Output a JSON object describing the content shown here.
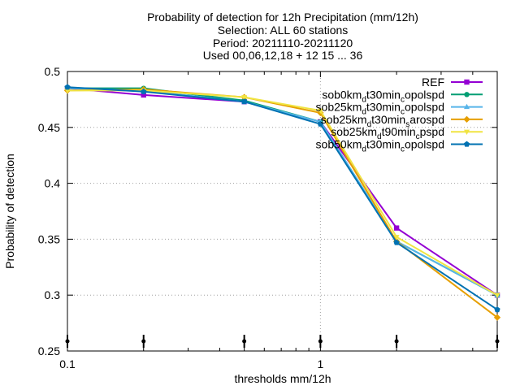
{
  "chart_data": {
    "type": "line",
    "title_lines": [
      "Probability of detection  for 12h Precipitation (mm/12h)",
      "Selection: ALL     60 stations",
      "Period: 20211110-20211120",
      "Used 00,06,12,18 + 12 15 ... 36"
    ],
    "xlabel": "thresholds mm/12h",
    "ylabel": "Probability of detection",
    "xscale": "log",
    "xlim": [
      0.1,
      5
    ],
    "ylim": [
      0.25,
      0.5
    ],
    "xticks": [
      {
        "value": 0.1,
        "label": "0.1"
      },
      {
        "value": 1,
        "label": "1"
      }
    ],
    "yticks": [
      {
        "value": 0.25,
        "label": "0.25"
      },
      {
        "value": 0.3,
        "label": "0.3"
      },
      {
        "value": 0.35,
        "label": "0.35"
      },
      {
        "value": 0.4,
        "label": "0.4"
      },
      {
        "value": 0.45,
        "label": "0.45"
      },
      {
        "value": 0.5,
        "label": "0.5"
      }
    ],
    "grid": true,
    "legend_position": "top-right",
    "x": [
      0.1,
      0.2,
      0.5,
      1,
      2,
      5
    ],
    "series": [
      {
        "name": "REF",
        "name_parts": [
          [
            "REF",
            ""
          ]
        ],
        "color": "#9400d3",
        "marker": "square",
        "values": [
          0.485,
          0.479,
          0.473,
          0.455,
          0.36,
          0.3
        ]
      },
      {
        "name": "sob0km_dt30min_copolspd",
        "name_parts": [
          [
            "sob0km",
            ""
          ],
          [
            "d",
            "sub"
          ],
          [
            "t30min",
            ""
          ],
          [
            "c",
            "sub"
          ],
          [
            "opolspd",
            ""
          ]
        ],
        "color": "#009e73",
        "marker": "circle",
        "values": [
          0.485,
          0.485,
          0.474,
          0.455,
          0.348,
          0.3
        ]
      },
      {
        "name": "sob25km_dt30min_copolspd",
        "name_parts": [
          [
            "sob25km",
            ""
          ],
          [
            "d",
            "sub"
          ],
          [
            "t30min",
            ""
          ],
          [
            "c",
            "sub"
          ],
          [
            "opolspd",
            ""
          ]
        ],
        "color": "#56b4e9",
        "marker": "triangle",
        "values": [
          0.485,
          0.483,
          0.473,
          0.455,
          0.348,
          0.3
        ]
      },
      {
        "name": "sob25km_dt30min_sarospd",
        "name_parts": [
          [
            "sob25km",
            ""
          ],
          [
            "d",
            "sub"
          ],
          [
            "t30min",
            ""
          ],
          [
            "s",
            "sub"
          ],
          [
            "arospd",
            ""
          ]
        ],
        "color": "#e69f00",
        "marker": "diamond",
        "values": [
          0.483,
          0.484,
          0.477,
          0.463,
          0.348,
          0.28
        ]
      },
      {
        "name": "sob25km_dt90min_cpspd",
        "name_parts": [
          [
            "sob25km",
            ""
          ],
          [
            "d",
            "sub"
          ],
          [
            "t90min",
            ""
          ],
          [
            "c",
            "sub"
          ],
          [
            "pspd",
            ""
          ]
        ],
        "color": "#f0e442",
        "marker": "triangle-down",
        "values": [
          0.483,
          0.483,
          0.477,
          0.465,
          0.352,
          0.3
        ]
      },
      {
        "name": "sob50km_dt30min_copolspd",
        "name_parts": [
          [
            "sob50km",
            ""
          ],
          [
            "d",
            "sub"
          ],
          [
            "t30min",
            ""
          ],
          [
            "c",
            "sub"
          ],
          [
            "opolspd",
            ""
          ]
        ],
        "color": "#0072b2",
        "marker": "pentagon",
        "values": [
          0.486,
          0.482,
          0.473,
          0.453,
          0.347,
          0.287
        ]
      }
    ]
  }
}
